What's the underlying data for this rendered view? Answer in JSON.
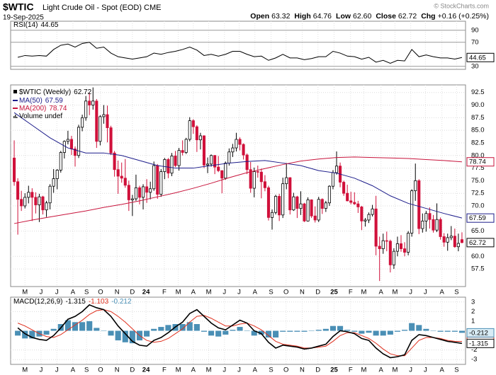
{
  "header": {
    "symbol": "$WTIC",
    "name": "Light Crude Oil - Spot (EOD) CME",
    "date": "19-Sep-2025",
    "copyright": "© StockCharts.com",
    "quote": [
      {
        "label": "Open",
        "value": "63.32"
      },
      {
        "label": "High",
        "value": "64.76"
      },
      {
        "label": "Low",
        "value": "62.60"
      },
      {
        "label": "Close",
        "value": "62.72"
      },
      {
        "label": "Chg",
        "value": "+0.16 (+0.25%)"
      }
    ]
  },
  "chart_data": [
    {
      "type": "line",
      "x": [
        1,
        3,
        5,
        7,
        9,
        11,
        13,
        15,
        17,
        19,
        21,
        23,
        25,
        27,
        29,
        31,
        33,
        35,
        37,
        39,
        41,
        43,
        45,
        47,
        49,
        51,
        53,
        55,
        57,
        59,
        61,
        63,
        65,
        67,
        69,
        71,
        73,
        75,
        77,
        79,
        81,
        83,
        85,
        87,
        89,
        91,
        93,
        95,
        97,
        99,
        101,
        103,
        105,
        107,
        109,
        111,
        113,
        115,
        117,
        119,
        121,
        123,
        125
      ],
      "series": [
        {
          "name": "RSI(14)",
          "color": "#000000",
          "values": [
            45,
            48,
            47,
            48,
            47,
            58,
            65,
            67,
            62,
            68,
            70,
            60,
            62,
            52,
            46,
            44,
            42,
            44,
            46,
            52,
            50,
            53,
            55,
            58,
            62,
            57,
            48,
            50,
            47,
            50,
            55,
            55,
            50,
            46,
            47,
            40,
            44,
            50,
            44,
            44,
            41,
            43,
            46,
            46,
            55,
            52,
            47,
            46,
            42,
            45,
            37,
            40,
            35,
            40,
            39,
            58,
            46,
            49,
            46,
            44,
            44,
            42,
            44.65
          ]
        }
      ],
      "xlim": [
        -1,
        126
      ],
      "ylim": [
        25,
        105
      ],
      "yticks": [
        30,
        70,
        90
      ],
      "grid": true
    },
    {
      "type": "candlestick",
      "title": "$WTIC (Weekly)",
      "up_color": "#000000",
      "down_color": "#d0103a",
      "open": [
        79.5,
        74.8,
        71.3,
        70.0,
        71.7,
        72.7,
        71.7,
        70.2,
        71.8,
        69.2,
        70.6,
        73.9,
        75.4,
        77.1,
        80.6,
        82.8,
        83.2,
        81.3,
        80.0,
        85.6,
        87.5,
        90.8,
        90.0,
        90.8,
        82.8,
        87.7,
        88.1,
        85.5,
        80.5,
        77.2,
        75.9,
        75.5,
        74.1,
        71.2,
        71.4,
        73.6,
        71.7,
        73.8,
        72.7,
        73.4,
        78.0,
        72.3,
        76.8,
        79.2,
        76.5,
        79.9,
        78.0,
        81.0,
        80.6,
        83.2,
        86.9,
        85.7,
        83.1,
        83.9,
        78.1,
        78.3,
        80.0,
        77.7,
        76.99,
        75.5,
        78.5,
        80.7,
        81.5,
        83.2,
        82.2,
        80.1,
        77.2,
        73.5,
        76.8,
        76.7,
        74.8,
        73.6,
        67.7,
        68.7,
        71.9,
        68.2,
        74.4,
        75.6,
        69.2,
        71.8,
        69.5,
        70.4,
        67.0,
        71.2,
        68.0,
        67.2,
        71.3,
        69.5,
        70.6,
        73.9,
        76.6,
        77.9,
        74.7,
        72.5,
        71.0,
        70.7,
        70.4,
        69.8,
        67.0,
        67.2,
        68.3,
        69.4,
        62.0,
        61.5,
        63.1,
        63.0,
        58.3,
        61.0,
        62.5,
        61.5,
        60.8,
        64.6,
        73.0,
        75.0,
        65.5,
        67.0,
        68.5,
        67.3,
        65.2,
        67.3,
        63.9,
        62.8,
        63.7,
        64.0,
        61.9,
        63.32
      ],
      "high": [
        83.0,
        75.5,
        73.0,
        72.5,
        74.0,
        73.5,
        72.7,
        72.4,
        72.0,
        71.0,
        74.3,
        77.3,
        77.3,
        80.9,
        83.0,
        84.9,
        83.9,
        81.8,
        86.1,
        88.1,
        91.8,
        92.4,
        93.5,
        91.2,
        88.0,
        90.0,
        89.9,
        85.9,
        80.9,
        79.0,
        78.6,
        79.3,
        75.0,
        72.2,
        76.2,
        74.0,
        74.3,
        75.3,
        74.8,
        78.8,
        78.3,
        77.3,
        79.5,
        79.5,
        80.5,
        80.9,
        81.5,
        83.0,
        83.5,
        87.6,
        87.2,
        86.0,
        84.5,
        84.0,
        79.6,
        80.2,
        80.1,
        79.9,
        77.1,
        78.8,
        81.4,
        82.3,
        84.5,
        83.6,
        82.4,
        80.4,
        78.7,
        77.6,
        78.0,
        77.4,
        76.1,
        74.0,
        69.3,
        72.2,
        72.4,
        75.6,
        78.5,
        75.7,
        72.6,
        72.0,
        72.9,
        70.6,
        71.7,
        71.3,
        69.9,
        71.8,
        71.5,
        71.0,
        74.1,
        77.1,
        80.8,
        78.6,
        75.0,
        74.2,
        72.8,
        72.7,
        71.0,
        70.0,
        67.6,
        68.7,
        70.2,
        72.0,
        63.9,
        64.5,
        64.9,
        63.3,
        61.6,
        63.9,
        64.2,
        62.8,
        65.0,
        73.3,
        78.4,
        75.3,
        68.5,
        69.0,
        69.7,
        68.2,
        70.5,
        67.7,
        64.6,
        64.5,
        66.0,
        65.5,
        64.5,
        64.76
      ],
      "low": [
        74.0,
        64.3,
        69.0,
        69.5,
        70.5,
        67.0,
        68.5,
        66.8,
        68.3,
        67.8,
        69.3,
        72.6,
        73.3,
        76.6,
        79.4,
        82.2,
        80.1,
        77.8,
        79.5,
        84.8,
        86.9,
        88.0,
        89.1,
        81.5,
        82.0,
        86.3,
        82.6,
        80.1,
        75.8,
        72.4,
        74.6,
        73.6,
        69.0,
        68.0,
        71.0,
        70.3,
        69.3,
        70.6,
        71.3,
        73.0,
        71.4,
        71.8,
        75.3,
        75.5,
        75.9,
        77.7,
        77.0,
        80.0,
        80.3,
        82.8,
        84.3,
        80.7,
        81.2,
        77.5,
        76.5,
        77.8,
        76.3,
        76.7,
        72.5,
        75.2,
        78.0,
        79.7,
        80.8,
        81.0,
        79.2,
        76.3,
        72.6,
        71.7,
        75.6,
        71.5,
        72.9,
        67.1,
        65.3,
        68.3,
        67.0,
        67.6,
        73.3,
        68.3,
        69.0,
        67.6,
        68.2,
        66.8,
        66.9,
        67.6,
        66.7,
        66.8,
        68.4,
        68.8,
        70.0,
        73.3,
        76.2,
        73.7,
        72.0,
        70.9,
        70.3,
        70.2,
        68.6,
        65.2,
        65.9,
        66.6,
        67.9,
        60.2,
        55.1,
        60.5,
        61.0,
        56.8,
        57.5,
        60.0,
        60.9,
        60.0,
        60.2,
        63.9,
        71.0,
        64.4,
        64.7,
        64.9,
        65.5,
        64.7,
        64.8,
        63.3,
        61.9,
        61.1,
        63.2,
        61.7,
        61.0,
        62.6
      ],
      "close": [
        74.8,
        71.3,
        70.0,
        71.7,
        72.7,
        71.7,
        70.2,
        71.8,
        69.2,
        70.6,
        73.9,
        75.4,
        77.1,
        80.6,
        82.8,
        83.2,
        81.3,
        80.0,
        85.6,
        87.5,
        90.8,
        90.0,
        90.8,
        82.8,
        87.7,
        88.1,
        85.5,
        80.5,
        77.2,
        75.9,
        75.5,
        74.1,
        71.2,
        71.4,
        73.6,
        71.7,
        73.8,
        72.7,
        73.4,
        78.0,
        72.3,
        76.8,
        79.2,
        76.5,
        79.9,
        78.0,
        81.0,
        80.6,
        83.2,
        86.9,
        85.7,
        83.1,
        83.9,
        78.1,
        78.3,
        80.0,
        77.7,
        76.99,
        75.5,
        78.5,
        80.7,
        81.5,
        83.2,
        82.2,
        80.1,
        77.2,
        73.5,
        76.8,
        76.7,
        74.8,
        73.6,
        67.7,
        68.7,
        71.9,
        68.2,
        74.4,
        75.6,
        69.2,
        71.8,
        69.5,
        70.4,
        67.0,
        71.2,
        68.0,
        67.2,
        71.3,
        69.5,
        70.6,
        73.9,
        76.6,
        77.9,
        74.7,
        72.5,
        71.0,
        70.7,
        70.4,
        69.8,
        67.0,
        67.2,
        68.3,
        69.4,
        62.0,
        61.5,
        63.1,
        63.0,
        58.3,
        61.0,
        62.5,
        61.5,
        60.8,
        64.6,
        73.0,
        75.0,
        65.5,
        67.0,
        68.5,
        67.3,
        65.2,
        67.3,
        63.9,
        62.8,
        63.7,
        64.0,
        61.9,
        62.56,
        62.72
      ],
      "overlays": [
        {
          "name": "MA(50)",
          "color": "#1c1c8a",
          "x": [
            0,
            5,
            10,
            15,
            20,
            25,
            30,
            35,
            40,
            45,
            50,
            55,
            60,
            65,
            70,
            75,
            80,
            85,
            90,
            95,
            100,
            105,
            110,
            115,
            120,
            125
          ],
          "values": [
            88.5,
            86.0,
            83.5,
            81.5,
            80.5,
            80.5,
            80.0,
            79.0,
            78.0,
            77.5,
            77.5,
            78.0,
            78.5,
            78.8,
            79.0,
            78.5,
            78.0,
            77.0,
            76.5,
            75.5,
            74.0,
            72.0,
            70.5,
            69.5,
            68.5,
            67.59
          ]
        },
        {
          "name": "MA(200)",
          "color": "#c8143c",
          "x": [
            0,
            5,
            10,
            15,
            20,
            25,
            30,
            35,
            40,
            45,
            50,
            55,
            60,
            65,
            70,
            75,
            80,
            85,
            90,
            95,
            100,
            105,
            110,
            115,
            120,
            125
          ],
          "values": [
            66.5,
            67.2,
            67.8,
            68.4,
            69.0,
            69.7,
            70.3,
            71.0,
            71.8,
            72.6,
            73.5,
            74.5,
            75.6,
            76.6,
            77.4,
            78.2,
            78.9,
            79.3,
            79.6,
            79.7,
            79.6,
            79.5,
            79.4,
            79.2,
            79.0,
            78.74
          ]
        }
      ],
      "volume_label": "Volume undef",
      "xlim": [
        -1,
        126
      ],
      "ylim": [
        54,
        94
      ],
      "yticks": [
        57.5,
        {
          "value": 60,
          "label": "60.0"
        },
        {
          "value": 65,
          "label": "65.0"
        },
        {
          "value": 70,
          "label": "70.0"
        },
        72.5,
        {
          "value": 75,
          "label": "75.0"
        },
        77.5,
        {
          "value": 80,
          "label": "80.0"
        },
        82.5,
        {
          "value": 85,
          "label": "85.0"
        },
        87.5,
        {
          "value": 90,
          "label": "90.0"
        },
        92.5
      ],
      "xticks": [
        {
          "value": 3.0,
          "label": "M"
        },
        {
          "value": 7.5,
          "label": "J"
        },
        {
          "value": 11.9,
          "label": "J"
        },
        {
          "value": 16.4,
          "label": "A"
        },
        {
          "value": 20.2,
          "label": "S"
        },
        {
          "value": 24.1,
          "label": "O"
        },
        {
          "value": 28.7,
          "label": "N"
        },
        {
          "value": 33.0,
          "label": "D"
        },
        {
          "value": 36.8,
          "label": "24"
        },
        {
          "value": 41.9,
          "label": "F"
        },
        {
          "value": 45.8,
          "label": "M"
        },
        {
          "value": 50.0,
          "label": "A"
        },
        {
          "value": 54.3,
          "label": "M"
        },
        {
          "value": 58.7,
          "label": "J"
        },
        {
          "value": 62.8,
          "label": "J"
        },
        {
          "value": 67.2,
          "label": "A"
        },
        {
          "value": 71.7,
          "label": "S"
        },
        {
          "value": 75.9,
          "label": "O"
        },
        {
          "value": 80.4,
          "label": "N"
        },
        {
          "value": 84.8,
          "label": "D"
        },
        {
          "value": 89.3,
          "label": "25"
        },
        {
          "value": 93.9,
          "label": "F"
        },
        {
          "value": 97.6,
          "label": "M"
        },
        {
          "value": 102.4,
          "label": "A"
        },
        {
          "value": 106.3,
          "label": "M"
        },
        {
          "value": 110.7,
          "label": "J"
        },
        {
          "value": 114.8,
          "label": "J"
        },
        {
          "value": 119.4,
          "label": "A"
        },
        {
          "value": 123.5,
          "label": "S"
        }
      ],
      "grid": true
    },
    {
      "type": "macd",
      "title": "MACD(12,26,9)",
      "x": [
        1,
        3,
        5,
        7,
        9,
        11,
        13,
        15,
        17,
        19,
        21,
        23,
        25,
        27,
        29,
        31,
        33,
        35,
        37,
        39,
        41,
        43,
        45,
        47,
        49,
        51,
        53,
        55,
        57,
        59,
        61,
        63,
        65,
        67,
        69,
        71,
        73,
        75,
        77,
        79,
        81,
        83,
        85,
        87,
        89,
        91,
        93,
        95,
        97,
        99,
        101,
        103,
        105,
        107,
        109,
        111,
        113,
        115,
        117,
        119,
        121,
        123,
        125
      ],
      "macd": {
        "color": "#000000",
        "values": [
          0.3,
          -0.3,
          -0.7,
          -0.9,
          -1.0,
          -0.5,
          0.3,
          1.2,
          1.5,
          2.0,
          2.7,
          2.4,
          2.2,
          1.5,
          0.5,
          -0.3,
          -1.1,
          -1.5,
          -1.6,
          -1.0,
          -0.7,
          -0.2,
          0.4,
          0.9,
          1.8,
          2.2,
          1.5,
          0.8,
          0.3,
          0.1,
          0.6,
          1.1,
          0.8,
          0.0,
          -0.3,
          -1.2,
          -1.8,
          -1.5,
          -1.6,
          -1.7,
          -1.9,
          -1.8,
          -1.6,
          -1.4,
          -0.6,
          0.0,
          -0.1,
          -0.3,
          -0.8,
          -1.0,
          -1.8,
          -2.4,
          -2.8,
          -2.7,
          -2.5,
          -1.0,
          -0.4,
          -0.5,
          -0.7,
          -0.9,
          -1.1,
          -1.2,
          -1.315
        ]
      },
      "signal": {
        "color": "#e0301e",
        "values": [
          0.8,
          0.5,
          0.1,
          -0.3,
          -0.6,
          -0.7,
          -0.4,
          0.1,
          0.6,
          1.1,
          1.7,
          2.1,
          2.2,
          2.0,
          1.5,
          0.9,
          0.2,
          -0.5,
          -1.0,
          -1.2,
          -1.1,
          -0.8,
          -0.3,
          0.2,
          0.9,
          1.5,
          1.6,
          1.3,
          0.9,
          0.5,
          0.5,
          0.7,
          0.8,
          0.5,
          0.1,
          -0.5,
          -1.1,
          -1.4,
          -1.5,
          -1.6,
          -1.8,
          -1.8,
          -1.7,
          -1.6,
          -1.1,
          -0.5,
          -0.2,
          -0.2,
          -0.5,
          -0.8,
          -1.3,
          -1.9,
          -2.4,
          -2.6,
          -2.6,
          -1.8,
          -1.0,
          -0.7,
          -0.7,
          -0.8,
          -1.0,
          -1.1,
          -1.103
        ]
      },
      "histogram": {
        "color": "#4a8fb5",
        "values": [
          -0.5,
          -0.8,
          -0.8,
          -0.6,
          -0.4,
          0.2,
          0.7,
          1.1,
          0.9,
          0.9,
          1.0,
          0.3,
          0.0,
          -0.5,
          -1.0,
          -1.2,
          -1.3,
          -1.0,
          -0.6,
          0.2,
          0.4,
          0.6,
          0.7,
          0.7,
          0.9,
          0.7,
          -0.1,
          -0.5,
          -0.6,
          -0.4,
          0.1,
          0.4,
          0.0,
          -0.5,
          -0.4,
          -0.7,
          -0.7,
          -0.1,
          -0.1,
          -0.1,
          -0.1,
          0.0,
          0.1,
          0.2,
          0.5,
          0.5,
          0.1,
          -0.1,
          -0.3,
          -0.2,
          -0.5,
          -0.5,
          -0.4,
          -0.1,
          0.1,
          0.8,
          0.6,
          0.2,
          0.0,
          -0.1,
          -0.1,
          -0.1,
          -0.212
        ]
      },
      "xlim": [
        -1,
        126
      ],
      "ylim": [
        -3.5,
        3.5
      ],
      "yticks": [
        3,
        2,
        1,
        -2,
        -3
      ],
      "grid": true
    }
  ]
}
